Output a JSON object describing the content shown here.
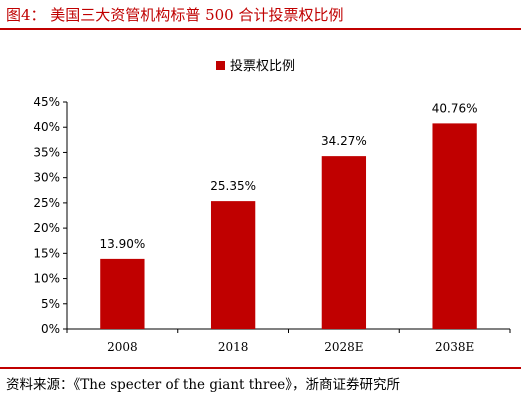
{
  "figure": {
    "title": "图4： 美国三大资管机构标普 500 合计投票权比例",
    "source": "资料来源：《The specter of the giant three》，浙商证券研究所"
  },
  "colors": {
    "accent": "#c00000",
    "bar": "#c00000"
  },
  "chart_data": {
    "type": "bar",
    "title": "",
    "xlabel": "",
    "ylabel": "",
    "categories": [
      "2008",
      "2018",
      "2028E",
      "2038E"
    ],
    "series": [
      {
        "name": "投票权比例",
        "values": [
          13.9,
          25.35,
          34.27,
          40.76
        ]
      }
    ],
    "value_labels": [
      "13.90%",
      "25.35%",
      "34.27%",
      "40.76%"
    ],
    "ylim": [
      0,
      45
    ],
    "y_ticks": [
      0,
      5,
      10,
      15,
      20,
      25,
      30,
      35,
      40,
      45
    ],
    "y_tick_labels": [
      "0%",
      "5%",
      "10%",
      "15%",
      "20%",
      "25%",
      "30%",
      "35%",
      "40%",
      "45%"
    ],
    "grid": false,
    "legend_position": "top-center"
  }
}
